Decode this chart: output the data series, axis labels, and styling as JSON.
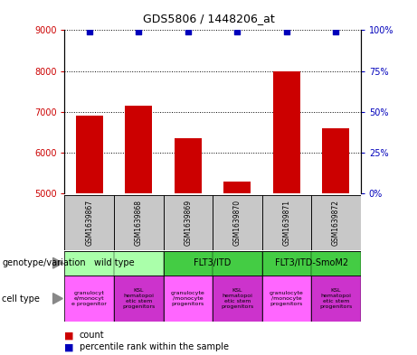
{
  "title": "GDS5806 / 1448206_at",
  "samples": [
    "GSM1639867",
    "GSM1639868",
    "GSM1639869",
    "GSM1639870",
    "GSM1639871",
    "GSM1639872"
  ],
  "counts": [
    6900,
    7150,
    6350,
    5300,
    8000,
    6600
  ],
  "percentile_ranks": [
    99,
    99,
    99,
    99,
    99,
    99
  ],
  "ylim_left": [
    5000,
    9000
  ],
  "ylim_right": [
    0,
    100
  ],
  "yticks_left": [
    5000,
    6000,
    7000,
    8000,
    9000
  ],
  "yticks_right": [
    0,
    25,
    50,
    75,
    100
  ],
  "bar_color": "#cc0000",
  "dot_color": "#0000bb",
  "sample_bg_color": "#c8c8c8",
  "geno_colors": [
    "#aaffaa",
    "#44cc44",
    "#44cc44"
  ],
  "geno_labels": [
    "wild type",
    "FLT3/ITD",
    "FLT3/ITD-SmoM2"
  ],
  "geno_ranges": [
    [
      0,
      2
    ],
    [
      2,
      4
    ],
    [
      4,
      6
    ]
  ],
  "cell_colors": [
    "#ff66ff",
    "#cc33cc",
    "#ff66ff",
    "#cc33cc",
    "#ff66ff",
    "#cc33cc"
  ],
  "cell_labels": [
    "granulocyt\ne/monocyt\ne progenitor",
    "KSL\nhematopoi\netic stem\nprogenitors",
    "granulocyte\n/monocyte\nprogenitors",
    "KSL\nhematopoi\netic stem\nprogenitors",
    "granulocyte\n/monocyte\nprogenitors",
    "KSL\nhematopoi\netic stem\nprogenitors"
  ],
  "left_label_color": "#cc0000",
  "right_label_color": "#0000bb",
  "title_fontsize": 9,
  "axis_fontsize": 7,
  "sample_fontsize": 5.5,
  "geno_fontsize": 7,
  "cell_fontsize": 4.5,
  "label_fontsize": 7,
  "legend_fontsize": 7
}
